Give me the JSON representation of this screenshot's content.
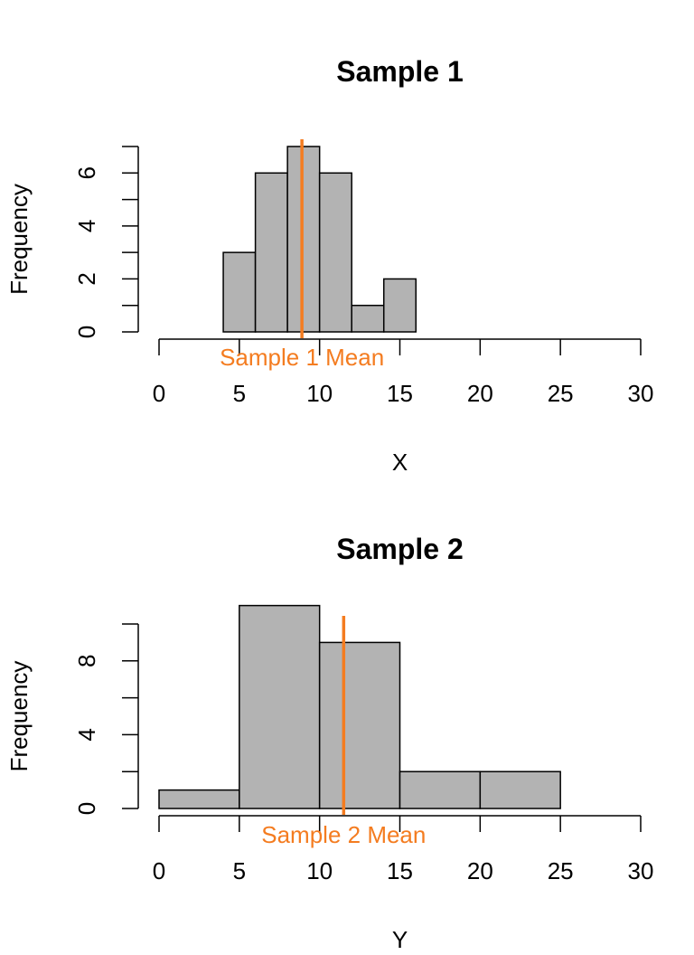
{
  "chart_data": [
    {
      "type": "histogram",
      "title": "Sample 1",
      "xlabel": "X",
      "ylabel": "Frequency",
      "xlim": [
        0,
        30
      ],
      "ylim": [
        0,
        7
      ],
      "x_ticks": [
        0,
        5,
        10,
        15,
        20,
        25,
        30
      ],
      "y_ticks": [
        0,
        2,
        4,
        6
      ],
      "bins": [
        {
          "start": 4,
          "end": 6,
          "count": 3
        },
        {
          "start": 6,
          "end": 8,
          "count": 6
        },
        {
          "start": 8,
          "end": 10,
          "count": 7
        },
        {
          "start": 10,
          "end": 12,
          "count": 6
        },
        {
          "start": 12,
          "end": 14,
          "count": 1
        },
        {
          "start": 14,
          "end": 16,
          "count": 2
        }
      ],
      "mean": 8.9,
      "mean_label": "Sample 1 Mean"
    },
    {
      "type": "histogram",
      "title": "Sample 2",
      "xlabel": "Y",
      "ylabel": "Frequency",
      "xlim": [
        0,
        30
      ],
      "ylim": [
        0,
        10
      ],
      "x_ticks": [
        0,
        5,
        10,
        15,
        20,
        25,
        30
      ],
      "y_ticks": [
        0,
        4,
        8
      ],
      "bins": [
        {
          "start": 0,
          "end": 5,
          "count": 1
        },
        {
          "start": 5,
          "end": 10,
          "count": 11
        },
        {
          "start": 10,
          "end": 15,
          "count": 9
        },
        {
          "start": 15,
          "end": 20,
          "count": 2
        },
        {
          "start": 20,
          "end": 25,
          "count": 2
        }
      ],
      "mean": 11.5,
      "mean_label": "Sample 2 Mean"
    }
  ],
  "colors": {
    "bar_fill": "#b3b3b3",
    "mean_line": "#f47c20",
    "axis": "#000000"
  }
}
